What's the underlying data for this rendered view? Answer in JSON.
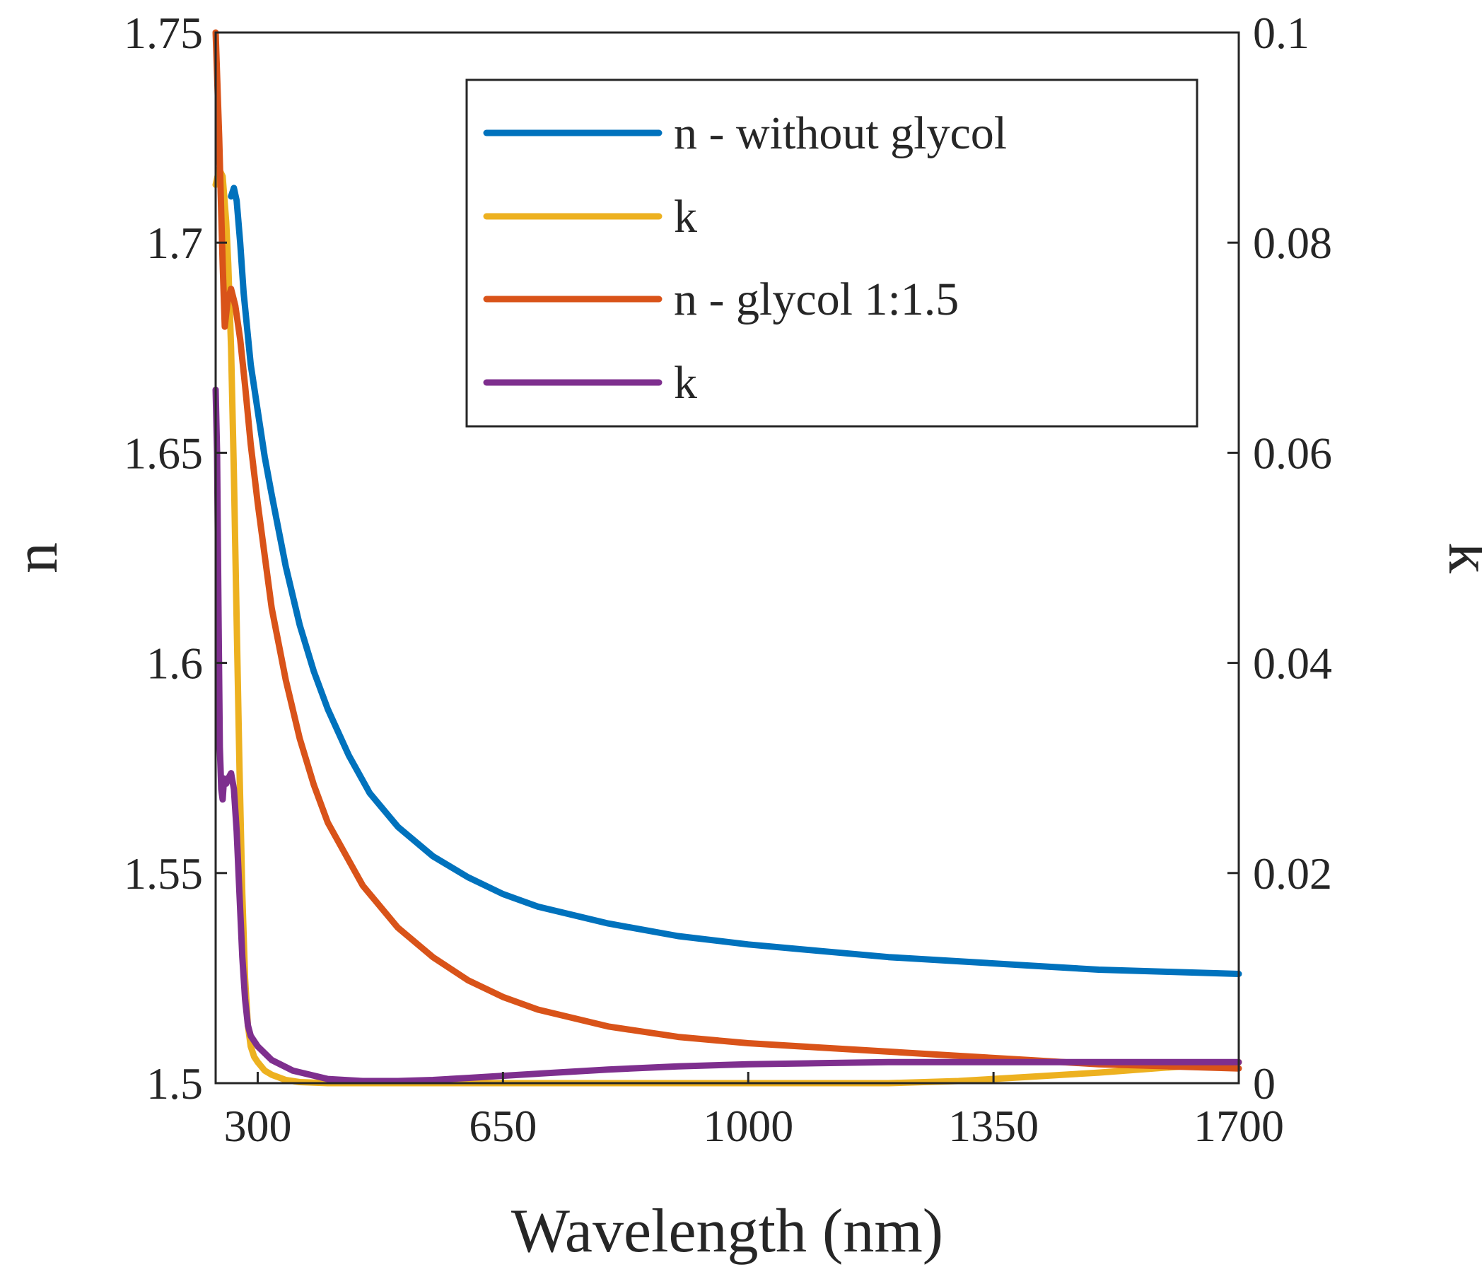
{
  "chart_data": {
    "type": "line",
    "title": "",
    "xlabel": "Wavelength (nm)",
    "ylabel_left": "n",
    "ylabel_right": "k",
    "xlim": [
      240,
      1700
    ],
    "ylim_left": [
      1.5,
      1.75
    ],
    "ylim_right": [
      0,
      0.1
    ],
    "x_ticks": [
      300,
      650,
      1000,
      1350,
      1700
    ],
    "x_tick_labels": [
      "300",
      "650",
      "1000",
      "1350",
      "1700"
    ],
    "y_left_ticks": [
      1.5,
      1.55,
      1.6,
      1.65,
      1.7,
      1.75
    ],
    "y_left_tick_labels": [
      "1.5",
      "1.55",
      "1.6",
      "1.65",
      "1.7",
      "1.75"
    ],
    "y_right_ticks": [
      0,
      0.02,
      0.04,
      0.06,
      0.08,
      0.1
    ],
    "y_right_tick_labels": [
      "0",
      "0.02",
      "0.04",
      "0.06",
      "0.08",
      "0.1"
    ],
    "grid": false,
    "legend_position": "top-right",
    "series": [
      {
        "name": "n - without glycol",
        "axis": "left",
        "color": "#0072BD",
        "x": [
          262,
          266,
          270,
          275,
          280,
          290,
          300,
          310,
          320,
          340,
          360,
          380,
          400,
          430,
          460,
          500,
          550,
          600,
          650,
          700,
          800,
          900,
          1000,
          1100,
          1200,
          1300,
          1400,
          1500,
          1600,
          1700
        ],
        "y": [
          1.711,
          1.713,
          1.71,
          1.7,
          1.688,
          1.671,
          1.66,
          1.649,
          1.64,
          1.623,
          1.609,
          1.598,
          1.589,
          1.578,
          1.569,
          1.561,
          1.554,
          1.549,
          1.545,
          1.542,
          1.538,
          1.535,
          1.533,
          1.5315,
          1.53,
          1.529,
          1.528,
          1.527,
          1.5265,
          1.526
        ]
      },
      {
        "name": "k",
        "axis": "right",
        "color": "#EDB120",
        "x": [
          240,
          245,
          250,
          255,
          258,
          262,
          266,
          270,
          274,
          278,
          282,
          286,
          290,
          295,
          300,
          310,
          320,
          340,
          360,
          400,
          450,
          500,
          600,
          700,
          800,
          900,
          1000,
          1100,
          1200,
          1300,
          1400,
          1500,
          1600,
          1700
        ],
        "y": [
          0.0855,
          0.087,
          0.0863,
          0.082,
          0.078,
          0.07,
          0.058,
          0.044,
          0.03,
          0.018,
          0.01,
          0.0055,
          0.0035,
          0.0025,
          0.002,
          0.0012,
          0.0008,
          0.0003,
          0.0001,
          0.0,
          0.0,
          0.0,
          0.0,
          0.0,
          0.0,
          0.0,
          0.0,
          0.0,
          0.0,
          0.0002,
          0.0006,
          0.001,
          0.0015,
          0.002
        ]
      },
      {
        "name": "n - glycol 1:1.5",
        "axis": "left",
        "color": "#D95319",
        "x": [
          240,
          242,
          245,
          248,
          250,
          253,
          257,
          262,
          268,
          275,
          282,
          290,
          300,
          320,
          340,
          360,
          380,
          400,
          450,
          500,
          550,
          600,
          650,
          700,
          800,
          900,
          1000,
          1100,
          1200,
          1300,
          1400,
          1500,
          1600,
          1700
        ],
        "y": [
          1.75,
          1.74,
          1.725,
          1.707,
          1.695,
          1.68,
          1.686,
          1.689,
          1.685,
          1.677,
          1.666,
          1.652,
          1.638,
          1.613,
          1.596,
          1.582,
          1.571,
          1.562,
          1.547,
          1.537,
          1.53,
          1.5245,
          1.5205,
          1.5175,
          1.5135,
          1.511,
          1.5095,
          1.5085,
          1.5075,
          1.5065,
          1.5055,
          1.5045,
          1.504,
          1.5035
        ]
      },
      {
        "name": "k",
        "axis": "right",
        "color": "#7E2F8E",
        "x": [
          240,
          242,
          244,
          246,
          248,
          250,
          252,
          255,
          258,
          262,
          266,
          270,
          274,
          278,
          282,
          286,
          290,
          300,
          320,
          350,
          400,
          450,
          500,
          550,
          600,
          700,
          800,
          900,
          1000,
          1100,
          1200,
          1300,
          1400,
          1500,
          1600,
          1700
        ],
        "y": [
          0.066,
          0.06,
          0.045,
          0.032,
          0.028,
          0.027,
          0.029,
          0.0285,
          0.029,
          0.0295,
          0.028,
          0.024,
          0.018,
          0.012,
          0.008,
          0.0055,
          0.0045,
          0.0035,
          0.0022,
          0.0012,
          0.0004,
          0.0002,
          0.0002,
          0.0003,
          0.0005,
          0.0009,
          0.0013,
          0.0016,
          0.0018,
          0.0019,
          0.002,
          0.002,
          0.002,
          0.002,
          0.002,
          0.002
        ]
      }
    ]
  }
}
